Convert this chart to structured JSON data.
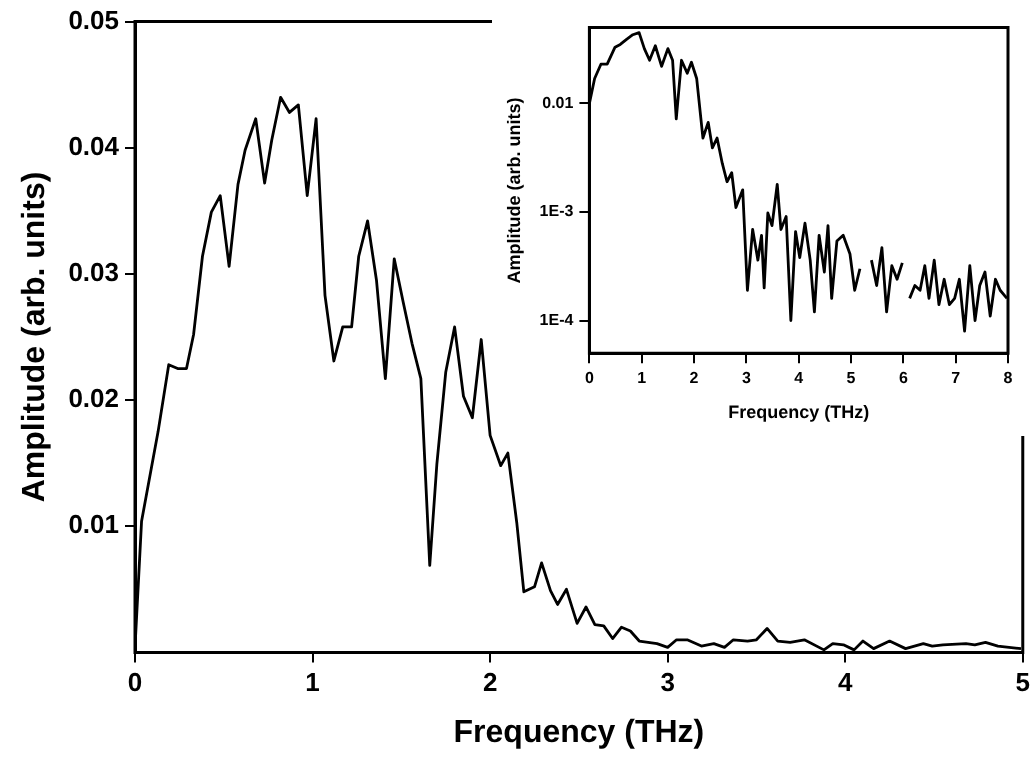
{
  "chart_data": [
    {
      "type": "line",
      "xlabel": "Frequency (THz)",
      "ylabel": "Amplitude (arb. units)",
      "xlim": [
        0,
        5
      ],
      "xticks": [
        0,
        1,
        2,
        3,
        4,
        5
      ],
      "ylim": [
        0,
        0.05
      ],
      "yticks": [
        0.01,
        0.02,
        0.03,
        0.04,
        0.05
      ],
      "grid": false,
      "x": [
        0,
        0.037,
        0.13,
        0.19,
        0.24,
        0.29,
        0.33,
        0.38,
        0.43,
        0.48,
        0.53,
        0.58,
        0.62,
        0.68,
        0.73,
        0.77,
        0.82,
        0.87,
        0.92,
        0.97,
        1.02,
        1.07,
        1.12,
        1.17,
        1.22,
        1.26,
        1.31,
        1.36,
        1.41,
        1.46,
        1.51,
        1.56,
        1.61,
        1.66,
        1.7,
        1.75,
        1.8,
        1.85,
        1.9,
        1.95,
        2.0,
        2.06,
        2.1,
        2.15,
        2.19,
        2.25,
        2.29,
        2.34,
        2.38,
        2.43,
        2.49,
        2.54,
        2.59,
        2.64,
        2.69,
        2.74,
        2.79,
        2.84,
        2.94,
        3.0,
        3.05,
        3.11,
        3.19,
        3.26,
        3.32,
        3.37,
        3.45,
        3.5,
        3.56,
        3.62,
        3.69,
        3.77,
        3.88,
        3.93,
        3.99,
        4.05,
        4.1,
        4.16,
        4.25,
        4.34,
        4.44,
        4.49,
        4.55,
        4.68,
        4.73,
        4.79,
        4.86,
        4.99
      ],
      "series": [
        {
          "color": "#000000",
          "values": [
            0.0004,
            0.0104,
            0.0175,
            0.0228,
            0.0225,
            0.0225,
            0.0252,
            0.0314,
            0.0349,
            0.0362,
            0.0306,
            0.0371,
            0.0398,
            0.0423,
            0.0372,
            0.0406,
            0.044,
            0.0428,
            0.0434,
            0.0362,
            0.0423,
            0.0283,
            0.0231,
            0.0258,
            0.0258,
            0.0314,
            0.0342,
            0.0295,
            0.0217,
            0.0312,
            0.0278,
            0.0245,
            0.0217,
            0.0069,
            0.0149,
            0.0222,
            0.0258,
            0.0203,
            0.0186,
            0.0248,
            0.0172,
            0.0148,
            0.0158,
            0.0103,
            0.0048,
            0.0052,
            0.0071,
            0.0049,
            0.0038,
            0.005,
            0.0023,
            0.0036,
            0.0022,
            0.0021,
            0.0011,
            0.002,
            0.0017,
            0.0009,
            0.0007,
            0.0004,
            0.001,
            0.001,
            0.0005,
            0.0007,
            0.0004,
            0.001,
            0.0009,
            0.001,
            0.0019,
            0.0009,
            0.0008,
            0.001,
            0.0002,
            0.0007,
            0.0006,
            0.0002,
            0.0009,
            0.0003,
            0.0009,
            0.0003,
            0.0007,
            0.0005,
            0.0006,
            0.0007,
            0.0006,
            0.0008,
            0.0005,
            0.0003
          ]
        }
      ]
    },
    {
      "type": "line",
      "xlabel": "Frequency (THz)",
      "ylabel": "Amplitude (arb. units)",
      "log": "y",
      "xlim": [
        0,
        8
      ],
      "xticks": [
        0,
        1,
        2,
        3,
        4,
        5,
        6,
        7,
        8
      ],
      "ylim": [
        5e-05,
        0.05
      ],
      "yticks": [
        {
          "value": 0.0001,
          "label": "1E-4"
        },
        {
          "value": 0.001,
          "label": "1E-3"
        },
        {
          "value": 0.01,
          "label": "0.01"
        }
      ],
      "grid": false,
      "x": [
        0,
        0.1,
        0.22,
        0.34,
        0.49,
        0.59,
        0.71,
        0.83,
        0.95,
        1.05,
        1.15,
        1.26,
        1.38,
        1.5,
        1.59,
        1.66,
        1.76,
        1.87,
        1.95,
        2.05,
        2.17,
        2.27,
        2.35,
        2.44,
        2.54,
        2.63,
        2.72,
        2.8,
        2.93,
        3.02,
        3.12,
        3.22,
        3.29,
        3.34,
        3.41,
        3.49,
        3.59,
        3.66,
        3.76,
        3.85,
        3.94,
        4.02,
        4.12,
        4.22,
        4.3,
        4.39,
        4.49,
        4.56,
        4.63,
        4.73,
        4.85,
        4.98,
        5.07,
        5.17,
        5.29,
        5.39,
        5.49,
        5.59,
        5.68,
        5.78,
        5.88,
        5.98,
        6.05,
        6.12,
        6.22,
        6.32,
        6.41,
        6.49,
        6.59,
        6.68,
        6.78,
        6.88,
        6.98,
        7.07,
        7.17,
        7.27,
        7.37,
        7.46,
        7.56,
        7.66,
        7.76,
        7.85,
        7.98
      ],
      "series": [
        {
          "color": "#000000",
          "values": [
            0.01,
            0.017,
            0.023,
            0.023,
            0.033,
            0.035,
            0.039,
            0.043,
            0.045,
            0.032,
            0.025,
            0.034,
            0.022,
            0.032,
            0.025,
            0.0072,
            0.025,
            0.019,
            0.024,
            0.017,
            0.0048,
            0.0067,
            0.0039,
            0.0048,
            0.0028,
            0.0019,
            0.0023,
            0.0011,
            0.0016,
            0.00019,
            0.00069,
            0.00036,
            0.00061,
            0.0002,
            0.00098,
            0.00075,
            0.0018,
            0.00069,
            0.00091,
            0.0001,
            0.00066,
            0.00038,
            0.00079,
            0.00036,
            0.00012,
            0.00061,
            0.00028,
            0.00075,
            0.00016,
            0.00054,
            0.00061,
            0.00041,
            0.00019,
            0.0003,
            null,
            0.00036,
            0.00021,
            0.00047,
            0.00012,
            0.00032,
            0.00024,
            0.00034,
            null,
            0.00016,
            0.00021,
            0.00019,
            0.00032,
            0.00016,
            0.00036,
            0.00014,
            0.00024,
            0.00014,
            0.00016,
            0.00024,
            8e-05,
            0.00032,
            0.0001,
            0.00021,
            0.00028,
            0.00011,
            0.00024,
            0.00019,
            0.00016
          ]
        }
      ]
    }
  ]
}
